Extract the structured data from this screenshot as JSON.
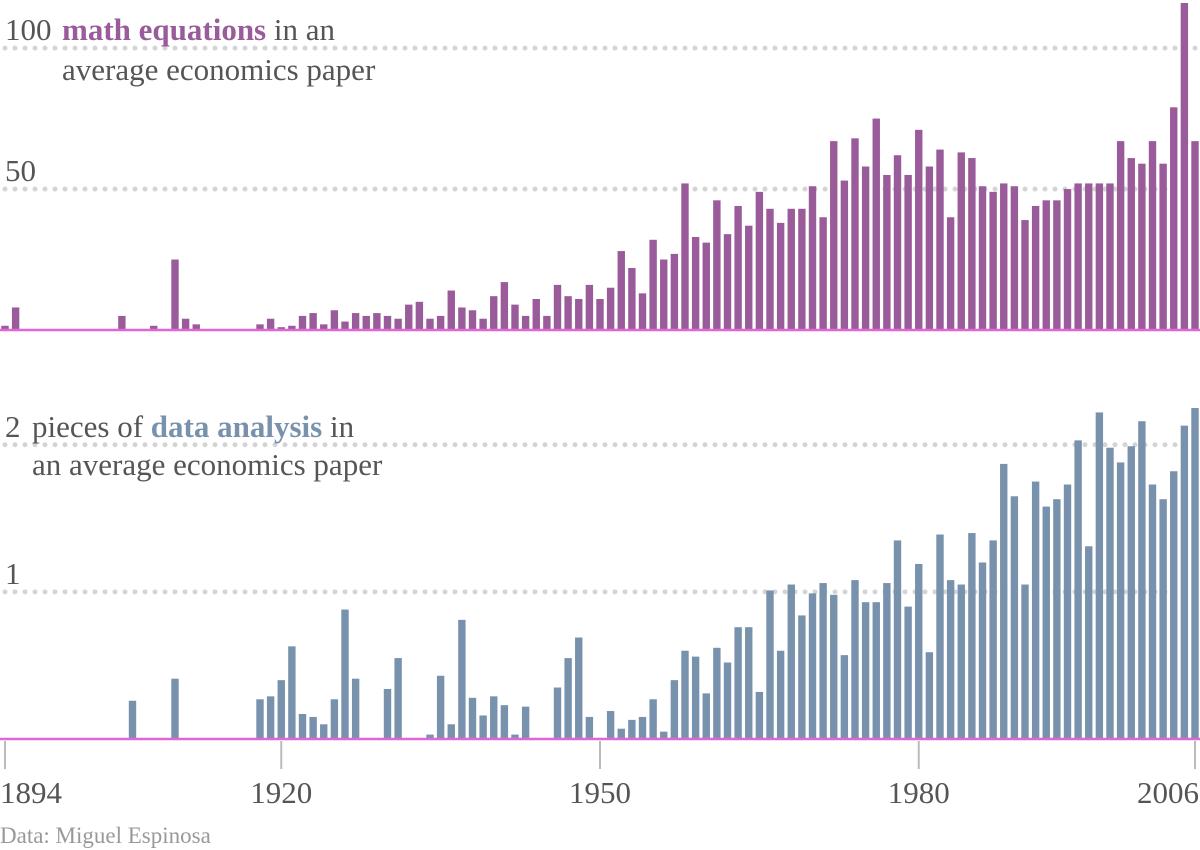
{
  "chart_data": [
    {
      "type": "bar",
      "title_highlight": "math equations",
      "title_lines": [
        "in an",
        "average economics paper"
      ],
      "color": "#9a5b9a",
      "ylim": [
        0,
        116
      ],
      "yticks": [
        50,
        100
      ],
      "xlim": [
        1894,
        2006
      ],
      "x": [
        1894,
        1895,
        1896,
        1897,
        1898,
        1899,
        1900,
        1901,
        1902,
        1903,
        1904,
        1905,
        1906,
        1907,
        1908,
        1909,
        1910,
        1911,
        1912,
        1913,
        1914,
        1915,
        1916,
        1917,
        1918,
        1919,
        1920,
        1921,
        1922,
        1923,
        1924,
        1925,
        1926,
        1927,
        1928,
        1929,
        1930,
        1931,
        1932,
        1933,
        1934,
        1935,
        1936,
        1937,
        1938,
        1939,
        1940,
        1941,
        1942,
        1943,
        1944,
        1945,
        1946,
        1947,
        1948,
        1949,
        1950,
        1951,
        1952,
        1953,
        1954,
        1955,
        1956,
        1957,
        1958,
        1959,
        1960,
        1961,
        1962,
        1963,
        1964,
        1965,
        1966,
        1967,
        1968,
        1969,
        1970,
        1971,
        1972,
        1973,
        1974,
        1975,
        1976,
        1977,
        1978,
        1979,
        1980,
        1981,
        1982,
        1983,
        1984,
        1985,
        1986,
        1987,
        1988,
        1989,
        1990,
        1991,
        1992,
        1993,
        1994,
        1995,
        1996,
        1997,
        1998,
        1999,
        2000,
        2001,
        2002,
        2003,
        2004,
        2005,
        2006
      ],
      "values": [
        1.5,
        8,
        0,
        0,
        0,
        0,
        0,
        0,
        0,
        0,
        0,
        5,
        0,
        0,
        1.5,
        0,
        25,
        4,
        2,
        0,
        0,
        0,
        0,
        0,
        2,
        4,
        1,
        1.5,
        5,
        6,
        2,
        7,
        3,
        6,
        5,
        6,
        5,
        4,
        9,
        10,
        4,
        5,
        14,
        8,
        7,
        4,
        12,
        17,
        9,
        5,
        11,
        5,
        16,
        12,
        11,
        16,
        11,
        15,
        28,
        22,
        13,
        32,
        25,
        27,
        52,
        33,
        31,
        46,
        34,
        44,
        37,
        49,
        43,
        38,
        43,
        43,
        51,
        40,
        67,
        53,
        68,
        58,
        75,
        55,
        62,
        55,
        71,
        58,
        64,
        40,
        63,
        61,
        51,
        49,
        52,
        51,
        39,
        44,
        46,
        46,
        50,
        52,
        52,
        52,
        52,
        67,
        61,
        59,
        67,
        59,
        79,
        116,
        67
      ]
    },
    {
      "type": "bar",
      "title_highlight": "data analysis",
      "title_lines": [
        "pieces of",
        "in",
        "an average economics paper"
      ],
      "color": "#7892ad",
      "ylim": [
        0,
        2.25
      ],
      "yticks": [
        1,
        2
      ],
      "xlim": [
        1894,
        2006
      ],
      "xticks": [
        1894,
        1920,
        1950,
        1980,
        2006
      ],
      "x": [
        1894,
        1895,
        1896,
        1897,
        1898,
        1899,
        1900,
        1901,
        1902,
        1903,
        1904,
        1905,
        1906,
        1907,
        1908,
        1909,
        1910,
        1911,
        1912,
        1913,
        1914,
        1915,
        1916,
        1917,
        1918,
        1919,
        1920,
        1921,
        1922,
        1923,
        1924,
        1925,
        1926,
        1927,
        1928,
        1929,
        1930,
        1931,
        1932,
        1933,
        1934,
        1935,
        1936,
        1937,
        1938,
        1939,
        1940,
        1941,
        1942,
        1943,
        1944,
        1945,
        1946,
        1947,
        1948,
        1949,
        1950,
        1951,
        1952,
        1953,
        1954,
        1955,
        1956,
        1957,
        1958,
        1959,
        1960,
        1961,
        1962,
        1963,
        1964,
        1965,
        1966,
        1967,
        1968,
        1969,
        1970,
        1971,
        1972,
        1973,
        1974,
        1975,
        1976,
        1977,
        1978,
        1979,
        1980,
        1981,
        1982,
        1983,
        1984,
        1985,
        1986,
        1987,
        1988,
        1989,
        1990,
        1991,
        1992,
        1993,
        1994,
        1995,
        1996,
        1997,
        1998,
        1999,
        2000,
        2001,
        2002,
        2003,
        2004,
        2005,
        2006
      ],
      "values": [
        0,
        0,
        0,
        0,
        0,
        0,
        0,
        0,
        0,
        0,
        0,
        0,
        0.26,
        0,
        0,
        0,
        0.41,
        0,
        0,
        0,
        0,
        0,
        0,
        0,
        0.27,
        0.29,
        0.4,
        0.63,
        0.17,
        0.15,
        0.1,
        0.27,
        0.88,
        0.41,
        0,
        0,
        0.34,
        0.55,
        0,
        0,
        0.03,
        0.43,
        0.1,
        0.81,
        0.28,
        0.16,
        0.29,
        0.23,
        0.03,
        0.22,
        0,
        0,
        0.35,
        0.55,
        0.69,
        0.15,
        0,
        0.19,
        0.07,
        0.13,
        0.15,
        0.27,
        0.05,
        0.4,
        0.6,
        0.56,
        0.31,
        0.62,
        0.52,
        0.76,
        0.76,
        0.32,
        1.01,
        0.6,
        1.05,
        0.84,
        0.99,
        1.06,
        0.98,
        0.57,
        1.08,
        0.93,
        0.93,
        1.06,
        1.35,
        0.9,
        1.19,
        0.59,
        1.39,
        1.08,
        1.05,
        1.4,
        1.2,
        1.35,
        1.87,
        1.65,
        1.05,
        1.75,
        1.58,
        1.63,
        1.73,
        2.03,
        1.31,
        2.22,
        1.98,
        1.88,
        1.99,
        2.16,
        1.73,
        1.63,
        1.82,
        2.13,
        2.25
      ]
    }
  ],
  "source": "Data: Miguel Espinosa"
}
